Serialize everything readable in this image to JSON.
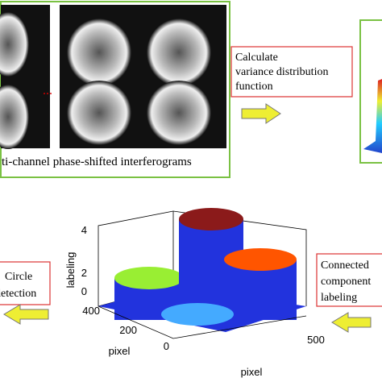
{
  "top": {
    "caption": "ti-channel phase-shifted interferograms",
    "ellipsis": "...",
    "step": [
      "Calculate",
      "variance distribution",
      "function"
    ]
  },
  "bottom": {
    "left_step": [
      "Circle",
      "detection"
    ],
    "right_step": [
      "Connected",
      "component",
      "labeling"
    ],
    "plot": {
      "z_label": "labeling",
      "x_label": "pixel",
      "y_label": "pixel",
      "z_ticks": [
        "4",
        "2",
        "0"
      ],
      "y_ticks": [
        "400",
        "200",
        "0"
      ],
      "x_ticks": [
        "500"
      ]
    }
  }
}
